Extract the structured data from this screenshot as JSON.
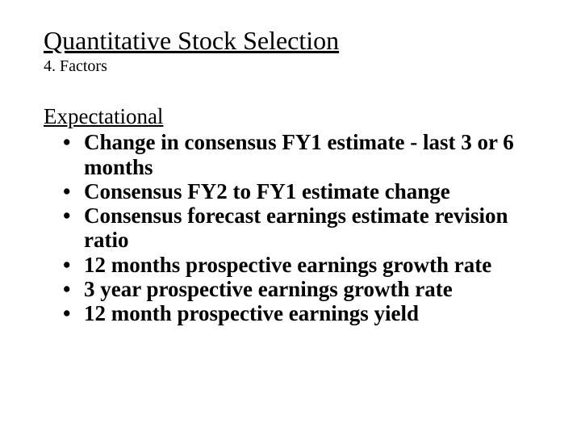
{
  "colors": {
    "background": "#ffffff",
    "text": "#000000"
  },
  "typography": {
    "font_family": "Times New Roman",
    "title_fontsize_pt": 24,
    "subtitle_fontsize_pt": 15,
    "section_fontsize_pt": 20,
    "bullet_fontsize_pt": 20,
    "bullet_font_weight": "bold"
  },
  "title": "Quantitative Stock Selection",
  "subtitle": "4. Factors",
  "section": "Expectational",
  "bullet_glyph": "•",
  "bullets": [
    "Change in consensus FY1 estimate - last 3 or 6 months",
    "Consensus FY2 to FY1 estimate change",
    "Consensus forecast earnings estimate revision ratio",
    "12 months prospective earnings growth rate",
    "3 year prospective earnings growth rate",
    "12 month prospective earnings yield"
  ]
}
